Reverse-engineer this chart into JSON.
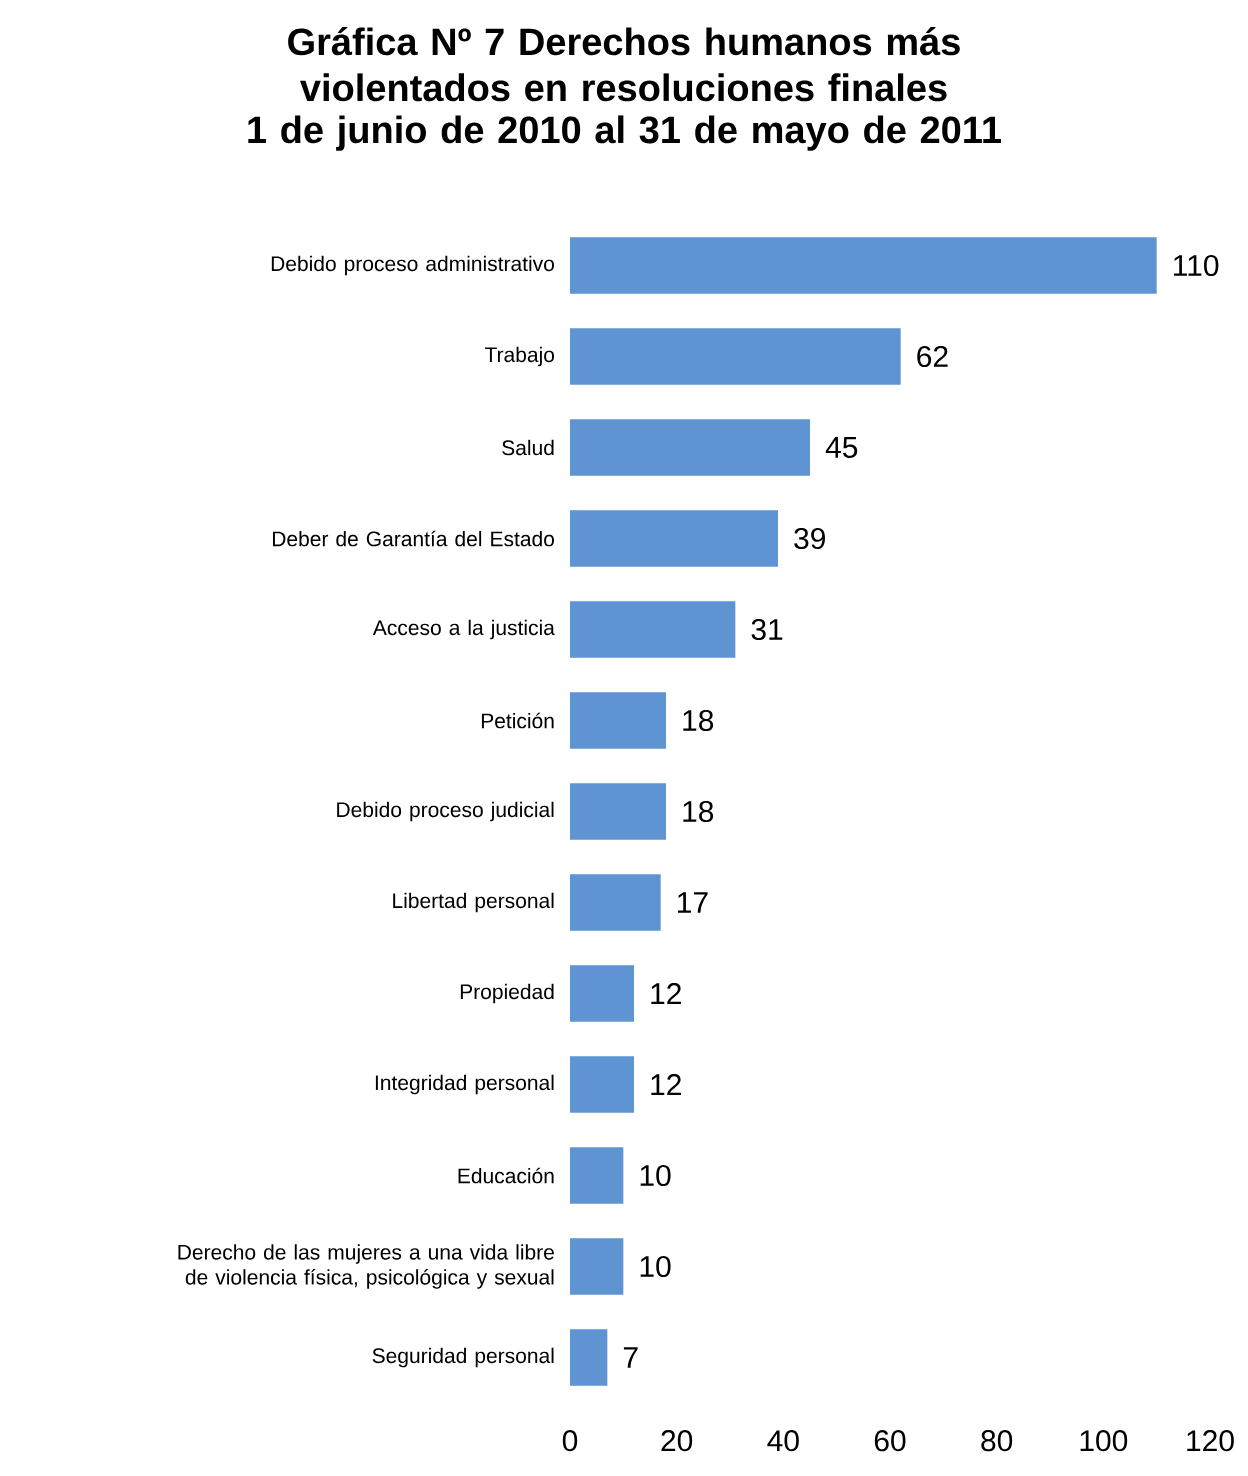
{
  "chart_data": {
    "type": "bar",
    "orientation": "horizontal",
    "title": "Gráfica Nº 7 Derechos humanos más violentados en resoluciones finales",
    "subtitle": "1 de junio de 2010 al 31 de mayo de 2011",
    "categories": [
      "Debido proceso administrativo",
      "Trabajo",
      "Salud",
      "Deber de Garantía del Estado",
      "Acceso a la justicia",
      "Petición",
      "Debido proceso judicial",
      "Libertad personal",
      "Propiedad",
      "Integridad personal",
      "Educación",
      "Derecho de las mujeres a una vida libre de violencia física, psicológica y sexual",
      "Seguridad personal"
    ],
    "values": [
      110,
      62,
      45,
      39,
      31,
      18,
      18,
      17,
      12,
      12,
      10,
      10,
      7
    ],
    "color": "#5f94d3",
    "data_labels": true,
    "xlim": [
      0,
      120
    ],
    "xticks": [
      0,
      20,
      40,
      60,
      80,
      100,
      120
    ]
  }
}
